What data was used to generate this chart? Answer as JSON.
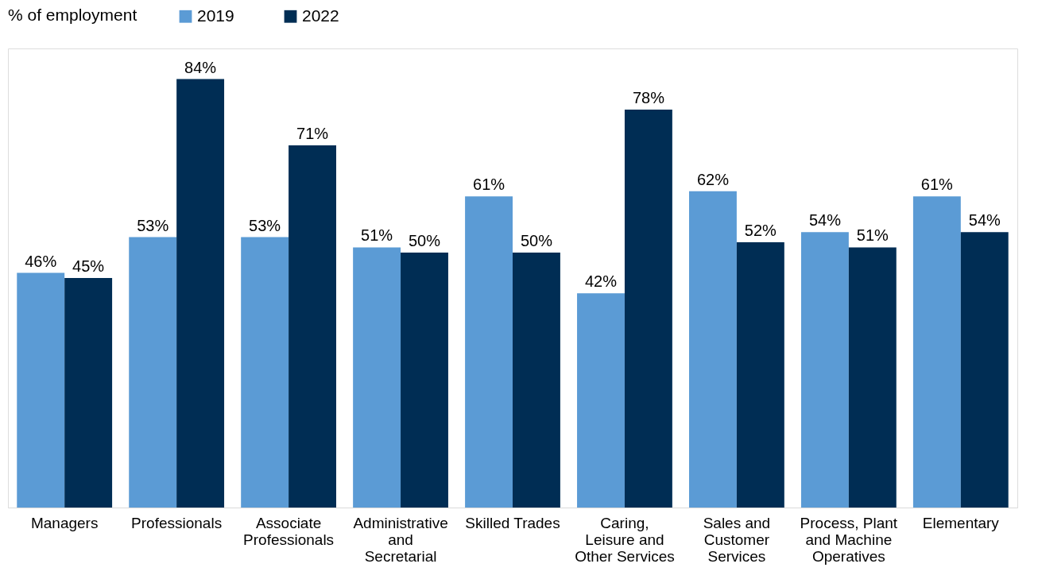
{
  "chart_data": {
    "type": "bar",
    "legend_title": "% of employment",
    "categories": [
      "Managers",
      "Professionals",
      "Associate Professionals",
      "Administrative and Secretarial",
      "Skilled Trades",
      "Caring, Leisure and Other Services",
      "Sales and Customer Services",
      "Process, Plant and Machine Operatives",
      "Elementary"
    ],
    "series": [
      {
        "name": "2019",
        "color": "#5b9bd5",
        "values": [
          46,
          53,
          53,
          51,
          61,
          42,
          62,
          54,
          61
        ],
        "value_labels": [
          "46%",
          "53%",
          "53%",
          "51%",
          "61%",
          "42%",
          "62%",
          "54%",
          "61%"
        ]
      },
      {
        "name": "2022",
        "color": "#002d54",
        "values": [
          45,
          84,
          71,
          50,
          50,
          78,
          52,
          51,
          54
        ],
        "value_labels": [
          "45%",
          "84%",
          "71%",
          "50%",
          "50%",
          "78%",
          "52%",
          "51%",
          "54%"
        ]
      }
    ],
    "grid": false,
    "legend": "top"
  }
}
